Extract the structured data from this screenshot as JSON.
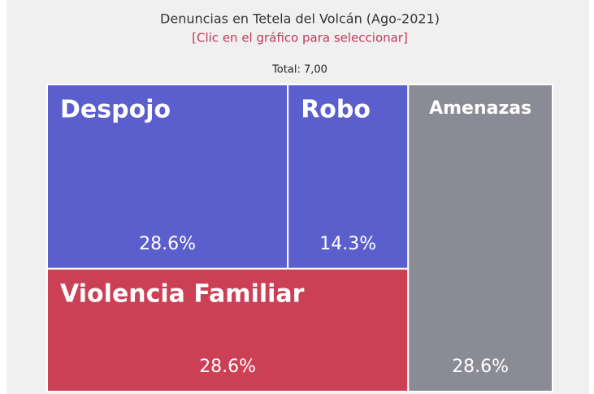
{
  "chart_data": {
    "type": "treemap",
    "title": "Denuncias en Tetela del Volcán (Ago-2021)",
    "subtitle": "[Clic en el gráfico para seleccionar]",
    "annotation": "Total: 7,00",
    "categories": [
      "Despojo",
      "Robo",
      "Violencia Familiar",
      "Amenazas"
    ],
    "values": [
      28.6,
      14.3,
      28.6,
      28.6
    ],
    "value_labels": [
      "28.6%",
      "14.3%",
      "28.6%",
      "28.6%"
    ],
    "colors": [
      "#5b5fce",
      "#5b5fce",
      "#cb4055",
      "#8b8b96"
    ]
  }
}
